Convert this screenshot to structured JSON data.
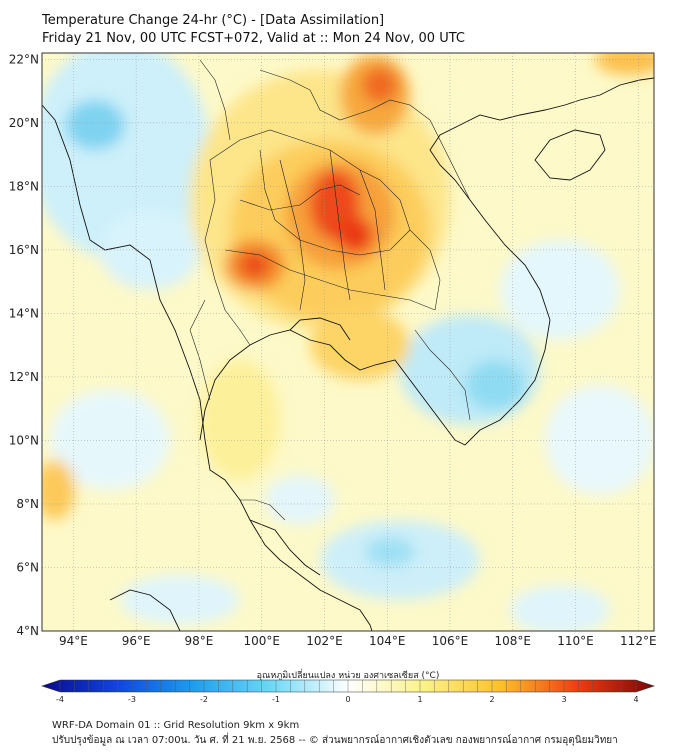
{
  "title": {
    "line1": "Temperature Change 24-hr (°C) - [Data Assimilation]",
    "line2": "Friday 21 Nov, 00 UTC FCST+072, Valid at :: Mon 24 Nov, 00 UTC"
  },
  "map": {
    "lon_range": [
      93,
      112.5
    ],
    "lat_range": [
      4,
      22.2
    ],
    "lat_ticks": [
      "22°N",
      "20°N",
      "18°N",
      "16°N",
      "14°N",
      "12°N",
      "10°N",
      "8°N",
      "6°N",
      "4°N"
    ],
    "lon_ticks": [
      "94°E",
      "96°E",
      "98°E",
      "100°E",
      "102°E",
      "104°E",
      "106°E",
      "108°E",
      "110°E",
      "112°E"
    ]
  },
  "colorbar": {
    "title": "อุณหภูมิเปลี่ยนแปลง หน่วย องศาเซลเซียส (°C)",
    "labels": [
      "-4",
      "-3",
      "-2",
      "-1",
      "0",
      "1",
      "2",
      "3",
      "4"
    ],
    "range": [
      -4,
      4
    ]
  },
  "footer": {
    "line1": "WRF-DA Domain 01 :: Grid Resolution 9km x 9km",
    "line2": "ปรับปรุงข้อมูล ณ เวลา 07:00น. วัน ศ. ที่ 21 พ.ย. 2568 -- © ส่วนพยากรณ์อากาศเชิงตัวเลข กองพยากรณ์อากาศ กรมอุตุนิยมวิทยา"
  }
}
